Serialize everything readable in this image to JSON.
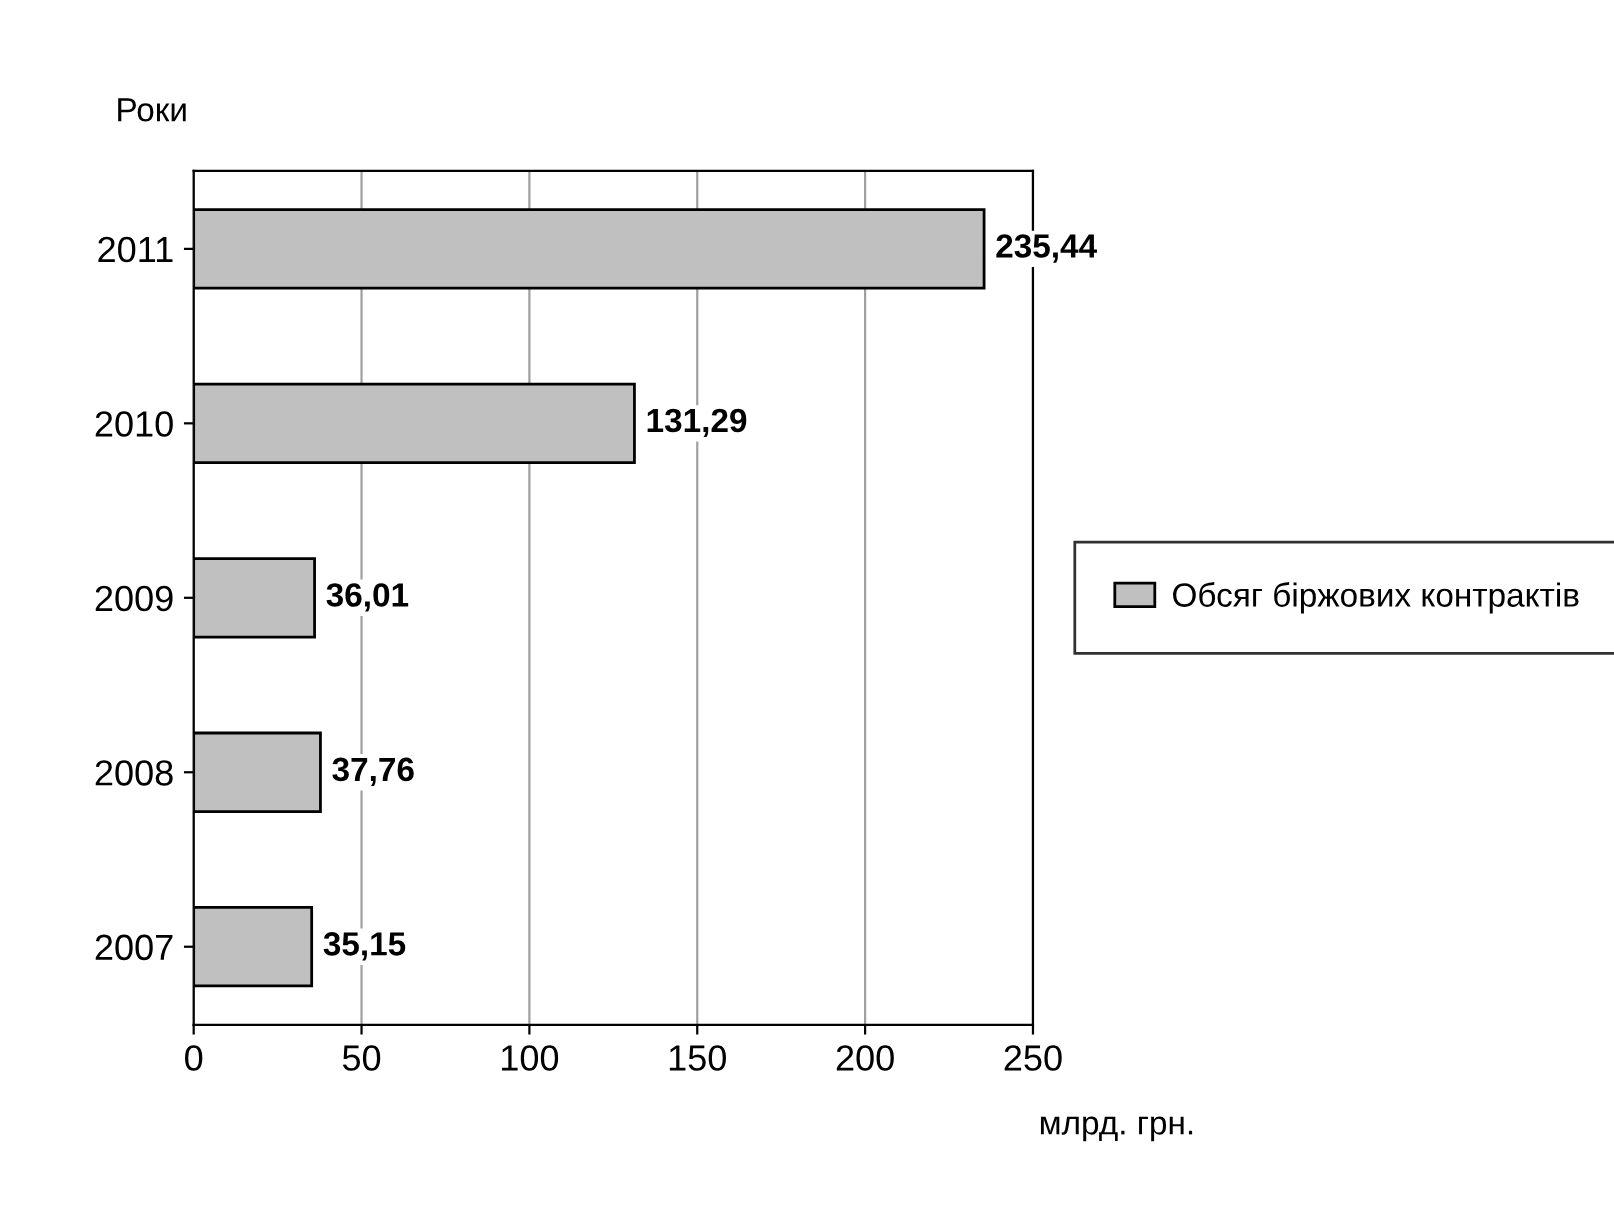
{
  "chart_data": {
    "type": "bar",
    "orientation": "horizontal",
    "ylabel": "Роки",
    "xlabel": "млрд. грн.",
    "categories": [
      "2011",
      "2010",
      "2009",
      "2008",
      "2007"
    ],
    "series": [
      {
        "name": "Обсяг біржових контрактів",
        "color": "#c0c0c0",
        "values": [
          235.44,
          131.29,
          36.01,
          37.76,
          35.15
        ],
        "value_labels": [
          "235,44",
          "131,29",
          "36,01",
          "37,76",
          "35,15"
        ]
      }
    ],
    "xlim": [
      0,
      250
    ],
    "xticks": [
      0,
      50,
      100,
      150,
      200,
      250
    ],
    "grid": "x",
    "legend": "right"
  }
}
